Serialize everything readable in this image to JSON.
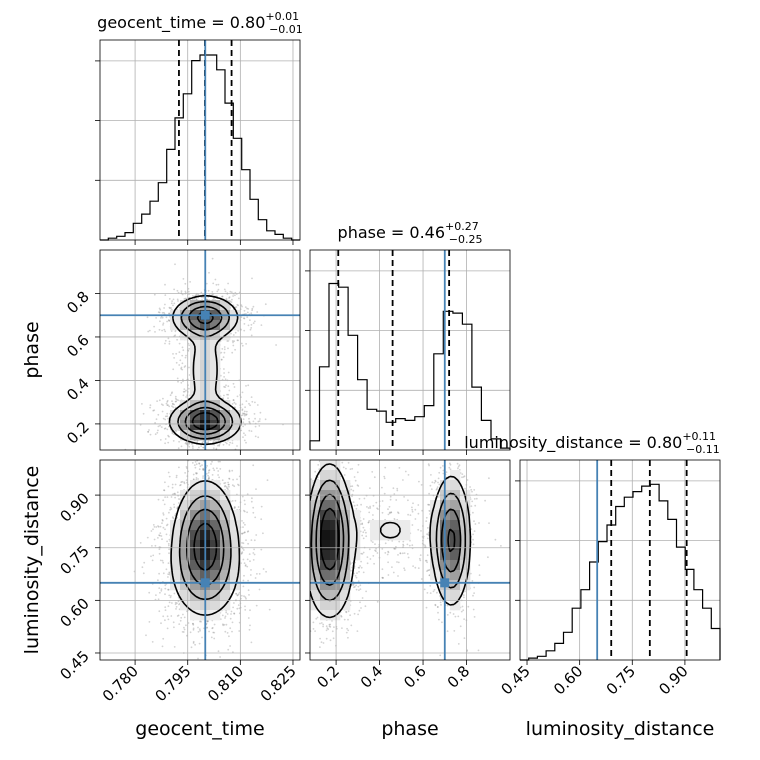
{
  "chart_data": {
    "type": "corner",
    "parameters": [
      {
        "name": "geocent_time",
        "label": "geocent_time",
        "title": "geocent_time = 0.80",
        "title_sup": "+0.01",
        "title_sub": "−0.01",
        "range": [
          0.77,
          0.827
        ],
        "ticks": [
          0.78,
          0.795,
          0.81,
          0.825
        ],
        "tick_labels": [
          "0.780",
          "0.795",
          "0.810",
          "0.825"
        ],
        "truth": 0.8,
        "quantiles": [
          0.7925,
          0.7999,
          0.8075
        ],
        "hist_counts": [
          0,
          0.01,
          0.02,
          0.04,
          0.09,
          0.14,
          0.21,
          0.31,
          0.49,
          0.66,
          0.79,
          0.97,
          1.0,
          1.0,
          0.92,
          0.74,
          0.55,
          0.38,
          0.22,
          0.11,
          0.05,
          0.03,
          0.01,
          0
        ]
      },
      {
        "name": "phase",
        "label": "phase",
        "title": "phase = 0.46",
        "title_sup": "+0.27",
        "title_sub": "−0.25",
        "range": [
          0.08,
          1.0
        ],
        "ticks": [
          0.2,
          0.4,
          0.6,
          0.8
        ],
        "tick_labels": [
          "0.2",
          "0.4",
          "0.6",
          "0.8"
        ],
        "truth": 0.7,
        "quantiles": [
          0.21,
          0.46,
          0.72
        ],
        "hist_counts": [
          0.05,
          0.45,
          0.9,
          0.88,
          0.62,
          0.38,
          0.22,
          0.21,
          0.15,
          0.17,
          0.16,
          0.18,
          0.24,
          0.52,
          0.75,
          0.74,
          0.68,
          0.34,
          0.16,
          0.06,
          0.01
        ]
      },
      {
        "name": "luminosity_distance",
        "label": "luminosity_distance",
        "title": "luminosity_distance = 0.80",
        "title_sup": "+0.11",
        "title_sub": "−0.11",
        "range": [
          0.43,
          1.0
        ],
        "ticks": [
          0.45,
          0.6,
          0.75,
          0.9
        ],
        "tick_labels": [
          "0.45",
          "0.60",
          "0.75",
          "0.90"
        ],
        "truth": 0.65,
        "quantiles": [
          0.69,
          0.8,
          0.905
        ],
        "hist_counts": [
          0,
          0.01,
          0.02,
          0.05,
          0.09,
          0.15,
          0.28,
          0.38,
          0.53,
          0.64,
          0.73,
          0.83,
          0.88,
          0.91,
          0.94,
          0.95,
          0.86,
          0.76,
          0.61,
          0.49,
          0.38,
          0.28,
          0.17
        ]
      }
    ],
    "density_peaks": {
      "phase_vs_geocent_time": [
        [
          0.8,
          0.21
        ],
        [
          0.8,
          0.69
        ]
      ],
      "luminosity_distance_vs_geocent_time": [
        [
          0.8,
          0.78
        ]
      ],
      "luminosity_distance_vs_phase": [
        [
          0.17,
          0.8
        ],
        [
          0.73,
          0.77
        ]
      ]
    },
    "colors": {
      "truth": "#4682b4",
      "contour": "#000000",
      "samples": "#808080",
      "grid": "#b0b0b0"
    }
  }
}
